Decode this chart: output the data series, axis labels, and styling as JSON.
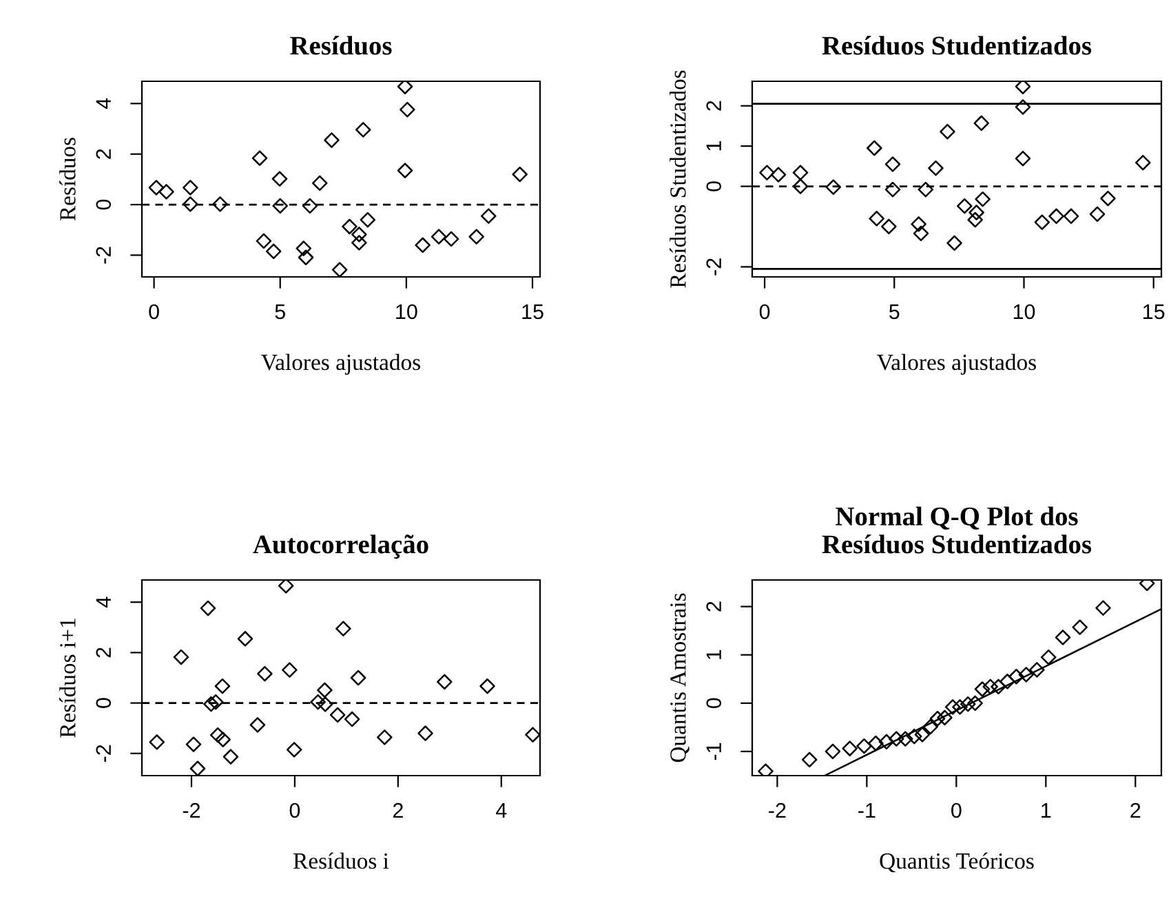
{
  "chart_data": [
    {
      "type": "scatter",
      "title": "Resíduos",
      "xlabel": "Valores ajustados",
      "ylabel": "Resíduos",
      "marker": "diamond",
      "xlim": [
        -0.48,
        15.3
      ],
      "ylim": [
        -2.86,
        4.88
      ],
      "xticks": [
        0,
        5,
        10,
        15
      ],
      "yticks": [
        -2,
        0,
        2,
        4
      ],
      "ref_lines": [
        {
          "axis": "y",
          "value": 0,
          "color": "#000000",
          "line_style": "dashed"
        }
      ],
      "series": [
        {
          "color": "#000000",
          "x": [
            0.09,
            0.49,
            1.44,
            1.44,
            2.62,
            4.19,
            4.35,
            4.74,
            4.98,
            5.0,
            5.93,
            6.02,
            6.18,
            6.57,
            7.04,
            7.36,
            7.75,
            8.13,
            8.13,
            8.29,
            8.47,
            9.95,
            10.04,
            9.95,
            10.65,
            11.29,
            11.78,
            12.78,
            13.26,
            14.5
          ],
          "values": [
            0.67,
            0.51,
            0.67,
            0.02,
            0.02,
            1.84,
            -1.44,
            -1.85,
            1.02,
            -0.05,
            -1.73,
            -2.09,
            -0.05,
            0.85,
            2.55,
            -2.58,
            -0.87,
            -1.18,
            -1.51,
            2.96,
            -0.6,
            4.67,
            3.76,
            1.35,
            -1.6,
            -1.27,
            -1.36,
            -1.27,
            -0.45,
            1.2
          ]
        }
      ]
    },
    {
      "type": "scatter",
      "title": "Resíduos Studentizados",
      "xlabel": "Valores ajustados",
      "ylabel": "Resíduos Studentizados",
      "marker": "diamond",
      "xlim": [
        -0.48,
        15.3
      ],
      "ylim": [
        -2.25,
        2.61
      ],
      "xticks": [
        0,
        5,
        10,
        15
      ],
      "yticks": [
        -2,
        0,
        1,
        2
      ],
      "ref_lines": [
        {
          "axis": "y",
          "value": 0,
          "color": "#000000",
          "line_style": "dashed"
        },
        {
          "axis": "y",
          "value": 2.05,
          "color": "#000000",
          "line_style": "solid"
        },
        {
          "axis": "y",
          "value": -2.05,
          "color": "#000000",
          "line_style": "solid"
        }
      ],
      "series": [
        {
          "color": "#000000",
          "x": [
            0.09,
            0.53,
            1.38,
            1.38,
            2.65,
            4.23,
            4.32,
            4.79,
            4.94,
            4.94,
            5.94,
            6.03,
            6.21,
            6.6,
            7.05,
            7.32,
            7.71,
            8.17,
            8.12,
            8.36,
            8.41,
            9.96,
            9.96,
            9.96,
            10.7,
            11.25,
            11.82,
            12.83,
            13.24,
            14.59
          ],
          "values": [
            0.34,
            0.29,
            0.34,
            0.0,
            -0.02,
            0.95,
            -0.8,
            -1.0,
            0.55,
            -0.08,
            -0.94,
            -1.17,
            -0.08,
            0.45,
            1.36,
            -1.41,
            -0.49,
            -0.65,
            -0.83,
            1.57,
            -0.32,
            2.48,
            1.97,
            0.69,
            -0.89,
            -0.74,
            -0.74,
            -0.69,
            -0.3,
            0.59
          ]
        }
      ]
    },
    {
      "type": "scatter",
      "title": "Autocorrelação",
      "xlabel": "Resíduos i",
      "ylabel": "Resíduos i+1",
      "marker": "diamond",
      "xlim": [
        -2.96,
        4.75
      ],
      "ylim": [
        -2.88,
        4.88
      ],
      "xticks": [
        -2,
        0,
        2,
        4
      ],
      "yticks": [
        -2,
        0,
        2,
        4
      ],
      "ref_lines": [
        {
          "axis": "y",
          "value": 0,
          "color": "#000000",
          "line_style": "dashed"
        }
      ],
      "series": [
        {
          "color": "#000000",
          "x": [
            -2.67,
            -2.2,
            -1.96,
            -1.88,
            -1.68,
            -1.62,
            -1.53,
            -1.4,
            -1.49,
            -1.39,
            -1.24,
            -0.96,
            -0.72,
            -0.58,
            -0.17,
            -0.1,
            -0.01,
            0.45,
            0.58,
            0.59,
            0.83,
            0.94,
            1.11,
            1.23,
            1.74,
            2.53,
            2.9,
            3.73,
            4.61
          ],
          "values": [
            -1.55,
            1.82,
            -1.64,
            -2.6,
            3.76,
            -0.04,
            0.04,
            0.67,
            -1.27,
            -1.45,
            -2.13,
            2.55,
            -0.87,
            1.16,
            4.65,
            1.31,
            -1.85,
            0.04,
            0.51,
            -0.05,
            -0.47,
            2.95,
            -0.64,
            1.0,
            -1.36,
            -1.2,
            0.84,
            0.67,
            -1.26
          ]
        }
      ]
    },
    {
      "type": "scatter",
      "title": "Normal Q-Q Plot dos\nResíduos Studentizados",
      "xlabel": "Quantis Teóricos",
      "ylabel": "Quantis Amostrais",
      "marker": "diamond",
      "xlim": [
        -2.28,
        2.29
      ],
      "ylim": [
        -1.5,
        2.55
      ],
      "xticks": [
        -2,
        -1,
        0,
        1,
        2
      ],
      "yticks": [
        -1,
        0,
        1,
        2
      ],
      "series": [
        {
          "color": "#000000",
          "x": [
            -2.13,
            -1.64,
            -1.38,
            -1.19,
            -1.03,
            -0.9,
            -0.78,
            -0.67,
            -0.57,
            -0.47,
            -0.38,
            -0.29,
            -0.21,
            -0.13,
            -0.04,
            0.04,
            0.13,
            0.21,
            0.29,
            0.38,
            0.47,
            0.57,
            0.67,
            0.78,
            0.9,
            1.03,
            1.19,
            1.38,
            1.64,
            2.13
          ],
          "values": [
            -1.41,
            -1.17,
            -1.0,
            -0.94,
            -0.89,
            -0.83,
            -0.8,
            -0.74,
            -0.74,
            -0.69,
            -0.65,
            -0.49,
            -0.32,
            -0.3,
            -0.08,
            -0.08,
            -0.02,
            0.0,
            0.29,
            0.34,
            0.34,
            0.45,
            0.55,
            0.59,
            0.69,
            0.95,
            1.36,
            1.57,
            1.97,
            2.48
          ]
        },
        {
          "type": "line",
          "marker": "none",
          "color": "#000000",
          "x": [
            -1.47,
            2.29
          ],
          "values": [
            -1.5,
            1.95
          ]
        }
      ]
    }
  ]
}
